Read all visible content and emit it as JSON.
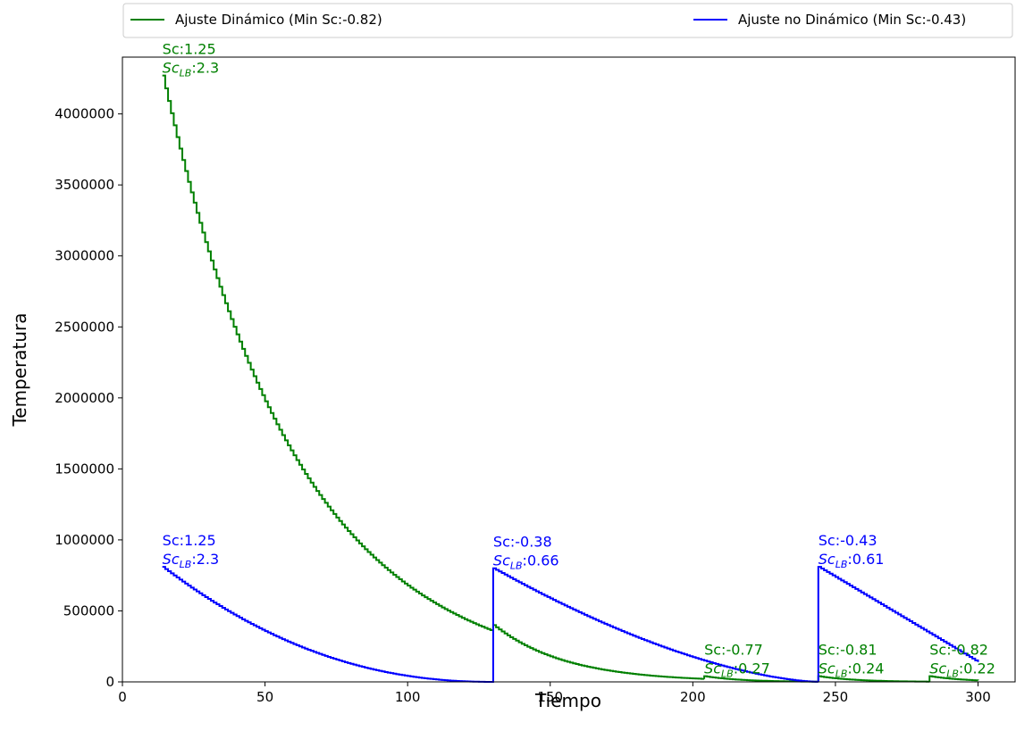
{
  "chart_data": {
    "type": "line",
    "xlabel": "Tiempo",
    "ylabel": "Temperatura",
    "xlim": [
      0,
      313
    ],
    "ylim": [
      0,
      4400000
    ],
    "xticks": [
      "0",
      "50",
      "100",
      "150",
      "200",
      "250",
      "300"
    ],
    "yticks": [
      "0",
      "500000",
      "1000000",
      "1500000",
      "2000000",
      "2500000",
      "3000000",
      "3500000",
      "4000000"
    ],
    "grid": false,
    "legend_placement": "top, above plot",
    "series": [
      {
        "name": "Ajuste Dinámico (Min Sc:-0.82)",
        "color": "#008000",
        "segments": [
          {
            "start": 14,
            "end": 130,
            "start_value": 4270000,
            "decay": 0.0214
          },
          {
            "start": 130,
            "end": 204,
            "start_value": 400000,
            "decay": 0.04
          },
          {
            "start": 204,
            "end": 244,
            "start_value": 40000,
            "decay": 0.08
          },
          {
            "start": 244,
            "end": 283,
            "start_value": 40000,
            "decay": 0.08
          },
          {
            "start": 283,
            "end": 300,
            "start_value": 40000,
            "decay": 0.08
          }
        ],
        "annotations": [
          {
            "x": 14,
            "sc": "Sc:1.25",
            "sclb": "2.3"
          },
          {
            "x": 204,
            "sc": "Sc:-0.77",
            "sclb": "0.27"
          },
          {
            "x": 244,
            "sc": "Sc:-0.81",
            "sclb": "0.24"
          },
          {
            "x": 283,
            "sc": "Sc:-0.82",
            "sclb": "0.22"
          }
        ]
      },
      {
        "name": "Ajuste no Dinámico (Min Sc:-0.43)",
        "color": "#0000ff",
        "segments": [
          {
            "start": 14,
            "end": 130,
            "start_value": 810000,
            "end_value": 0,
            "shape": 2.2
          },
          {
            "start": 130,
            "end": 244,
            "start_value": 800000,
            "end_value": 0,
            "shape": 1.6
          },
          {
            "start": 244,
            "end": 300,
            "start_value": 810000,
            "end_value": 140000,
            "shape": 1.0
          }
        ],
        "annotations": [
          {
            "x": 14,
            "sc": "Sc:1.25",
            "sclb": "2.3"
          },
          {
            "x": 130,
            "sc": "Sc:-0.38",
            "sclb": "0.66"
          },
          {
            "x": 244,
            "sc": "Sc:-0.43",
            "sclb": "0.61"
          }
        ]
      }
    ]
  },
  "sc_lb_label": "Sc",
  "sc_lb_sub": "LB"
}
